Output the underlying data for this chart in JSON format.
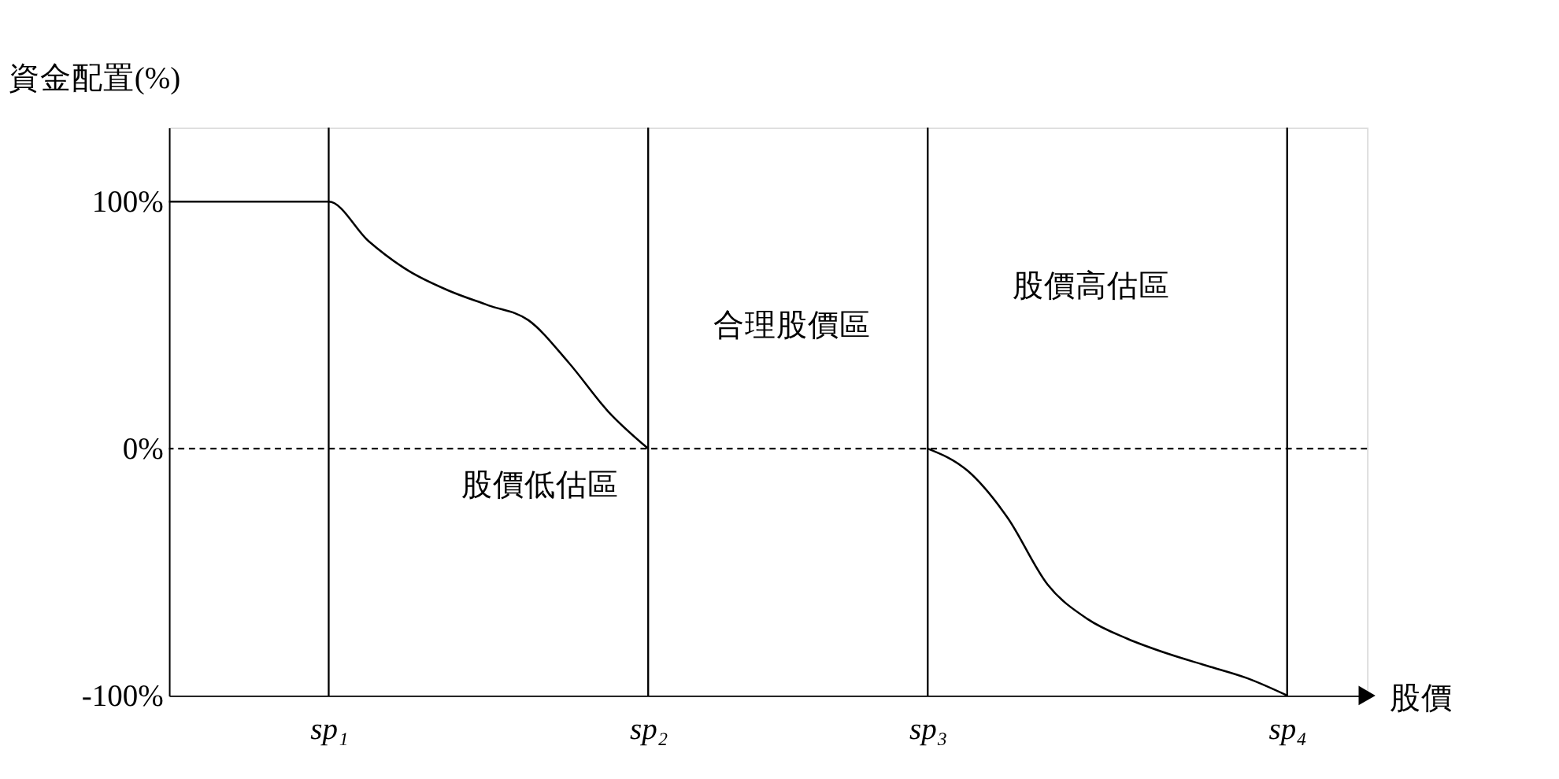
{
  "chart_data": {
    "type": "line",
    "ylabel": "資金配置(%)",
    "xlabel": "股價",
    "categories": [
      null,
      null,
      null,
      null,
      "sp₁",
      null,
      null,
      null,
      null,
      null,
      null,
      null,
      "sp₂",
      null,
      null,
      null,
      null,
      null,
      null,
      "sp₃",
      null,
      null,
      null,
      null,
      null,
      null,
      null,
      null,
      "sp₄",
      null,
      null
    ],
    "series": [
      {
        "color": "#000000",
        "values": [
          100,
          100,
          100,
          100,
          100,
          84,
          72,
          64,
          58,
          52,
          35,
          15,
          0,
          null,
          null,
          null,
          null,
          null,
          null,
          0,
          -9,
          -28,
          -55,
          -69,
          -77,
          -83,
          -88,
          -93,
          -100,
          null,
          null
        ]
      }
    ],
    "ylim": [
      -100,
      130
    ],
    "yticks": [
      {
        "value": -100,
        "label": "-100%"
      },
      {
        "value": 0,
        "label": "0%"
      },
      {
        "value": 100,
        "label": "100%"
      }
    ],
    "ref_lines": [
      {
        "axis": "x",
        "value": "sp₁",
        "color": "#000000",
        "line_style": "solid"
      },
      {
        "axis": "x",
        "value": "sp₂",
        "color": "#000000",
        "line_style": "solid"
      },
      {
        "axis": "x",
        "value": "sp₃",
        "color": "#000000",
        "line_style": "solid"
      },
      {
        "axis": "x",
        "value": "sp₄",
        "color": "#000000",
        "line_style": "solid"
      },
      {
        "axis": "y",
        "value": 0,
        "color": "#000000",
        "line_style": "dashed"
      }
    ],
    "annotations": [
      "合理股價區",
      "股價高估區",
      "股價低估區"
    ],
    "grid": false,
    "marker": "none",
    "line_style": "solid"
  }
}
